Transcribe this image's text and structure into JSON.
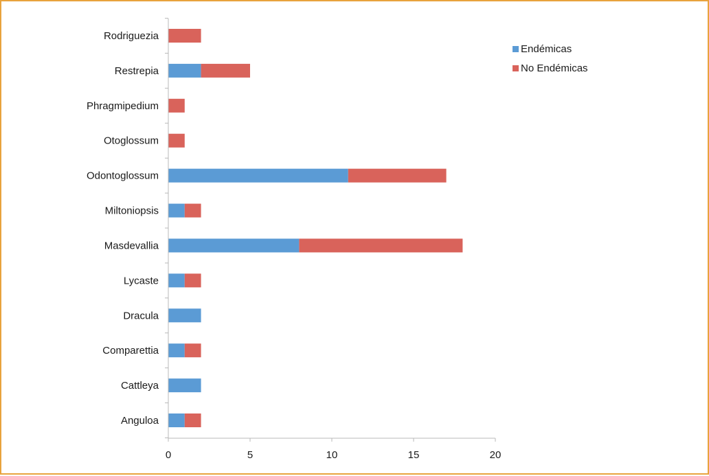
{
  "chart_data": {
    "type": "bar",
    "orientation": "horizontal",
    "stacked": true,
    "categories": [
      "Anguloa",
      "Cattleya",
      "Comparettia",
      "Dracula",
      "Lycaste",
      "Masdevallia",
      "Miltoniopsis",
      "Odontoglossum",
      "Otoglossum",
      "Phragmipedium",
      "Restrepia",
      "Rodriguezia"
    ],
    "series": [
      {
        "name": "Endémicas",
        "color": "#5B9BD5",
        "values": [
          1,
          2,
          1,
          2,
          1,
          8,
          1,
          11,
          0,
          0,
          2,
          0
        ]
      },
      {
        "name": "No Endémicas",
        "color": "#D9635B",
        "values": [
          1,
          0,
          1,
          0,
          1,
          10,
          1,
          6,
          1,
          1,
          3,
          2
        ]
      }
    ],
    "xlim": [
      0,
      20
    ],
    "xticks": [
      "0",
      "5",
      "10",
      "15",
      "20"
    ],
    "title": "",
    "xlabel": "",
    "ylabel": "",
    "grid": false,
    "legend_position": "top-right",
    "frame_color": "#E8A33D"
  }
}
